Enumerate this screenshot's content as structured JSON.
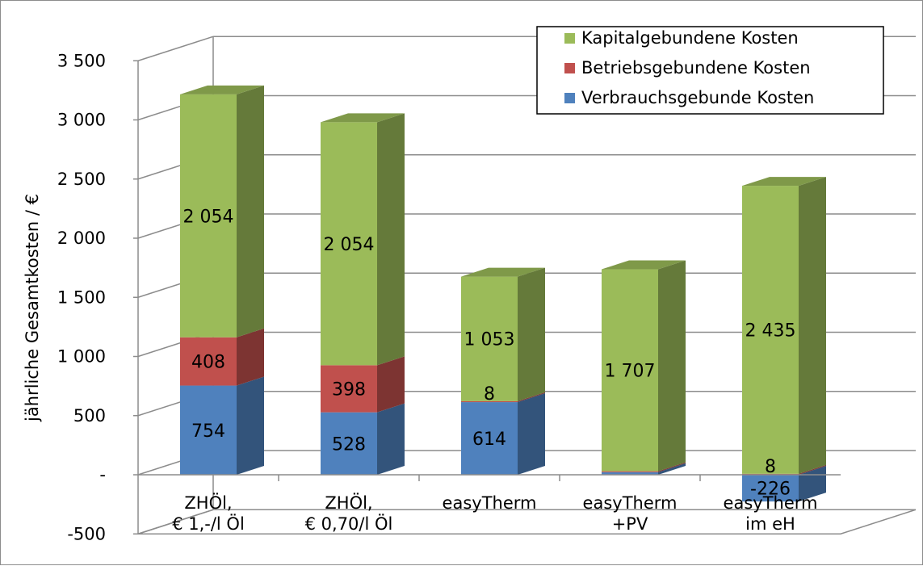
{
  "chart_data": {
    "type": "bar",
    "stacked": true,
    "three_d": true,
    "ylabel": "jährliche Gesamtkosten / €",
    "ylim": [
      -500,
      3500
    ],
    "y_ticks": [
      {
        "value": 3500,
        "label": "3 500"
      },
      {
        "value": 3000,
        "label": "3 000"
      },
      {
        "value": 2500,
        "label": "2 500"
      },
      {
        "value": 2000,
        "label": "2 000"
      },
      {
        "value": 1500,
        "label": "1 500"
      },
      {
        "value": 1000,
        "label": "1 000"
      },
      {
        "value": 500,
        "label": "500"
      },
      {
        "value": 0,
        "label": "-"
      },
      {
        "value": -500,
        "label": "-500"
      }
    ],
    "categories": [
      [
        "ZHÖl,",
        "€ 1,-/l Öl"
      ],
      [
        "ZHÖl,",
        "€ 0,70/l Öl"
      ],
      [
        "easyTherm"
      ],
      [
        "easyTherm",
        "+PV"
      ],
      [
        "easyTherm",
        "im eH"
      ]
    ],
    "series": [
      {
        "name": "Verbrauchsgebunde Kosten",
        "color": "#4f81bd",
        "values": [
          754,
          528,
          614,
          22,
          -226
        ],
        "labels": [
          "754",
          "528",
          "614",
          "",
          "-226"
        ]
      },
      {
        "name": "Betriebsgebundene Kosten",
        "color": "#c0504d",
        "values": [
          408,
          398,
          8,
          8,
          8
        ],
        "labels": [
          "408",
          "398",
          "8",
          "",
          "8"
        ]
      },
      {
        "name": "Kapitalgebundene Kosten",
        "color": "#9bbb59",
        "values": [
          2054,
          2054,
          1053,
          1707,
          2435
        ],
        "labels": [
          "2 054",
          "2 054",
          "1 053",
          "1 707",
          "2 435"
        ]
      }
    ],
    "legend": {
      "position": "top-right",
      "entries": [
        {
          "name": "Kapitalgebundene Kosten",
          "color": "#9bbb59"
        },
        {
          "name": "Betriebsgebundene Kosten",
          "color": "#c0504d"
        },
        {
          "name": "Verbrauchsgebunde Kosten",
          "color": "#4f81bd"
        }
      ]
    },
    "grid": true
  }
}
